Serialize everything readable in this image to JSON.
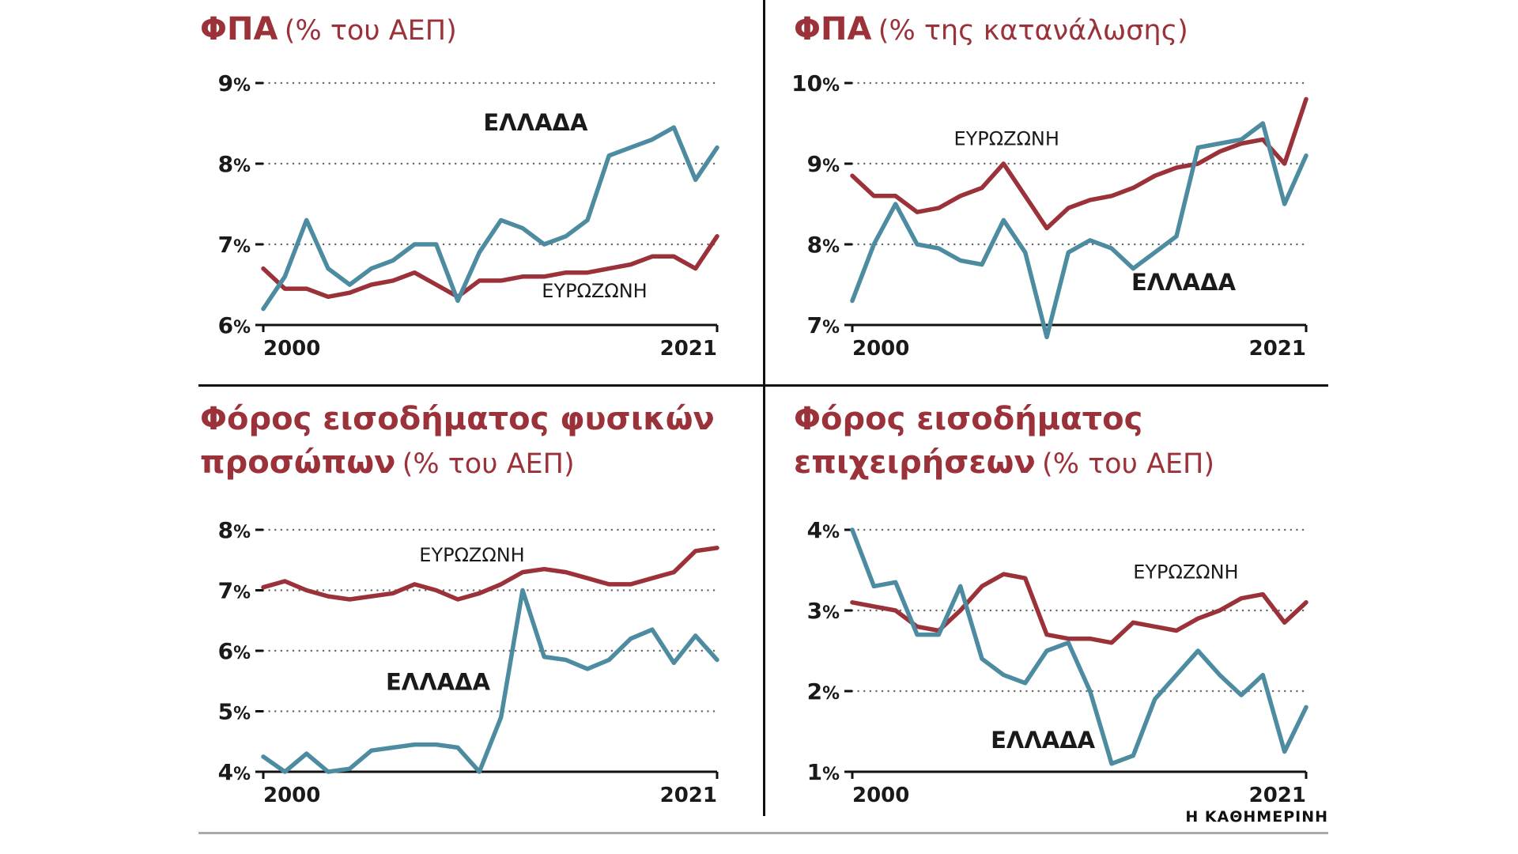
{
  "footer": {
    "brand": "Η ΚΑΘΗΜΕΡΙΝΗ"
  },
  "colors": {
    "greece": "#4D8CA0",
    "eurozone": "#9B3139",
    "title": "#9B3139",
    "axis": "#111111",
    "grid": "#666666",
    "footer_line": "#AAAAAA"
  },
  "chart_data": [
    {
      "id": "vat-pct-gdp",
      "type": "line",
      "title_main": "ΦΠΑ",
      "title_sub": "(% του ΑΕΠ)",
      "x": [
        2000,
        2001,
        2002,
        2003,
        2004,
        2005,
        2006,
        2007,
        2008,
        2009,
        2010,
        2011,
        2012,
        2013,
        2014,
        2015,
        2016,
        2017,
        2018,
        2019,
        2020,
        2021
      ],
      "xtick_labels": [
        "2000",
        "2021"
      ],
      "ylim": [
        6,
        9
      ],
      "yticks": [
        6,
        7,
        8,
        9
      ],
      "y_suffix": "%",
      "grid": "dotted",
      "legend_position": "inline",
      "series": [
        {
          "key": "eurozone",
          "name": "ΕΥΡΩΖΩΝΗ",
          "color": "eurozone",
          "label_bold": false,
          "label_x": 0.73,
          "label_y": 0.86,
          "values": [
            6.7,
            6.45,
            6.45,
            6.35,
            6.4,
            6.5,
            6.55,
            6.65,
            6.5,
            6.35,
            6.55,
            6.55,
            6.6,
            6.6,
            6.65,
            6.65,
            6.7,
            6.75,
            6.85,
            6.85,
            6.7,
            7.1
          ]
        },
        {
          "key": "greece",
          "name": "ΕΛΛΑΔΑ",
          "color": "greece",
          "label_bold": true,
          "label_x": 0.6,
          "label_y": 0.17,
          "values": [
            6.2,
            6.6,
            7.3,
            6.7,
            6.5,
            6.7,
            6.8,
            7.0,
            7.0,
            6.3,
            6.9,
            7.3,
            7.2,
            7.0,
            7.1,
            7.3,
            8.1,
            8.2,
            8.3,
            8.45,
            7.8,
            8.2
          ]
        }
      ]
    },
    {
      "id": "vat-pct-consumption",
      "type": "line",
      "title_main": "ΦΠΑ",
      "title_sub": "(% της κατανάλωσης)",
      "x": [
        2000,
        2001,
        2002,
        2003,
        2004,
        2005,
        2006,
        2007,
        2008,
        2009,
        2010,
        2011,
        2012,
        2013,
        2014,
        2015,
        2016,
        2017,
        2018,
        2019,
        2020,
        2021
      ],
      "xtick_labels": [
        "2000",
        "2021"
      ],
      "ylim": [
        7,
        10
      ],
      "yticks": [
        7,
        8,
        9,
        10
      ],
      "y_suffix": "%",
      "grid": "dotted",
      "legend_position": "inline",
      "series": [
        {
          "key": "eurozone",
          "name": "ΕΥΡΩΖΩΝΗ",
          "color": "eurozone",
          "label_bold": false,
          "label_x": 0.34,
          "label_y": 0.23,
          "values": [
            8.85,
            8.6,
            8.6,
            8.4,
            8.45,
            8.6,
            8.7,
            9.0,
            8.6,
            8.2,
            8.45,
            8.55,
            8.6,
            8.7,
            8.85,
            8.95,
            9.0,
            9.15,
            9.25,
            9.3,
            9.0,
            9.8
          ]
        },
        {
          "key": "greece",
          "name": "ΕΛΛΑΔΑ",
          "color": "greece",
          "label_bold": true,
          "label_x": 0.73,
          "label_y": 0.83,
          "values": [
            7.3,
            8.0,
            8.5,
            8.0,
            7.95,
            7.8,
            7.75,
            8.3,
            7.9,
            6.85,
            7.9,
            8.05,
            7.95,
            7.7,
            7.9,
            8.1,
            9.2,
            9.25,
            9.3,
            9.5,
            8.5,
            9.1
          ]
        }
      ]
    },
    {
      "id": "personal-income-tax-pct-gdp",
      "type": "line",
      "title_main": "Φόρος εισοδήματος φυσικών προσώπων",
      "title_sub": "(% του ΑΕΠ)",
      "x": [
        2000,
        2001,
        2002,
        2003,
        2004,
        2005,
        2006,
        2007,
        2008,
        2009,
        2010,
        2011,
        2012,
        2013,
        2014,
        2015,
        2016,
        2017,
        2018,
        2019,
        2020,
        2021
      ],
      "xtick_labels": [
        "2000",
        "2021"
      ],
      "ylim": [
        4,
        8
      ],
      "yticks": [
        4,
        5,
        6,
        7,
        8
      ],
      "y_suffix": "%",
      "grid": "dotted",
      "legend_position": "inline",
      "series": [
        {
          "key": "eurozone",
          "name": "ΕΥΡΩΖΩΝΗ",
          "color": "eurozone",
          "label_bold": false,
          "label_x": 0.46,
          "label_y": 0.105,
          "values": [
            7.05,
            7.15,
            7.0,
            6.9,
            6.85,
            6.9,
            6.95,
            7.1,
            7.0,
            6.85,
            6.95,
            7.1,
            7.3,
            7.35,
            7.3,
            7.2,
            7.1,
            7.1,
            7.2,
            7.3,
            7.65,
            7.7
          ]
        },
        {
          "key": "greece",
          "name": "ΕΛΛΑΔΑ",
          "color": "greece",
          "label_bold": true,
          "label_x": 0.385,
          "label_y": 0.635,
          "values": [
            4.25,
            4.0,
            4.3,
            4.0,
            4.05,
            4.35,
            4.4,
            4.45,
            4.45,
            4.4,
            4.0,
            4.9,
            7.0,
            5.9,
            5.85,
            5.7,
            5.85,
            6.2,
            6.35,
            5.8,
            6.25,
            5.85
          ]
        }
      ]
    },
    {
      "id": "corporate-income-tax-pct-gdp",
      "type": "line",
      "title_main": "Φόρος εισοδήματος επιχειρήσεων",
      "title_sub": "(% του ΑΕΠ)",
      "x": [
        2000,
        2001,
        2002,
        2003,
        2004,
        2005,
        2006,
        2007,
        2008,
        2009,
        2010,
        2011,
        2012,
        2013,
        2014,
        2015,
        2016,
        2017,
        2018,
        2019,
        2020,
        2021
      ],
      "xtick_labels": [
        "2000",
        "2021"
      ],
      "ylim": [
        1,
        4
      ],
      "yticks": [
        1,
        2,
        3,
        4
      ],
      "y_suffix": "%",
      "grid": "dotted",
      "legend_position": "inline",
      "series": [
        {
          "key": "eurozone",
          "name": "ΕΥΡΩΖΩΝΗ",
          "color": "eurozone",
          "label_bold": false,
          "label_x": 0.735,
          "label_y": 0.175,
          "values": [
            3.1,
            3.05,
            3.0,
            2.8,
            2.75,
            3.0,
            3.3,
            3.45,
            3.4,
            2.7,
            2.65,
            2.65,
            2.6,
            2.85,
            2.8,
            2.75,
            2.9,
            3.0,
            3.15,
            3.2,
            2.85,
            3.1
          ]
        },
        {
          "key": "greece",
          "name": "ΕΛΛΑΔΑ",
          "color": "greece",
          "label_bold": true,
          "label_x": 0.42,
          "label_y": 0.875,
          "values": [
            4.0,
            3.3,
            3.35,
            2.7,
            2.7,
            3.3,
            2.4,
            2.2,
            2.1,
            2.5,
            2.6,
            2.0,
            1.1,
            1.2,
            1.9,
            2.2,
            2.5,
            2.2,
            1.95,
            2.2,
            1.25,
            1.8
          ]
        }
      ]
    }
  ]
}
